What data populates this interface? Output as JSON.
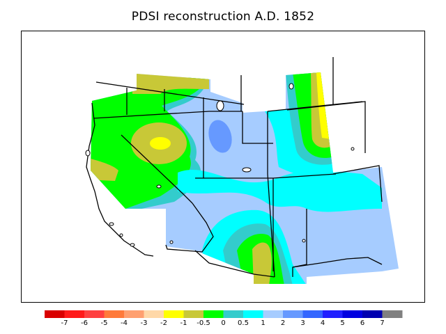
{
  "title": "PDSI reconstruction A.D. 1852",
  "legend": {
    "colors": [
      "#d90000",
      "#ff1a1a",
      "#ff4040",
      "#ff7a3a",
      "#ffa070",
      "#ffd8a8",
      "#ffff00",
      "#c8c837",
      "#00ff00",
      "#33cccc",
      "#00ffff",
      "#a6ccff",
      "#6699ff",
      "#3366ff",
      "#2020ff",
      "#0000e0",
      "#0000b0",
      "#808080"
    ],
    "ticks": [
      "-7",
      "-6",
      "-5",
      "-4",
      "-3",
      "-2",
      "-1",
      "-0.5",
      "0",
      "0.5",
      "1",
      "2",
      "3",
      "4",
      "5",
      "6",
      "7"
    ]
  },
  "palette": {
    "light_blue": "#a6ccff",
    "cyan": "#00ffff",
    "teal": "#33cccc",
    "green": "#00ff00",
    "olive": "#c8c837",
    "yellow": "#ffff00",
    "blue": "#6699ff"
  }
}
